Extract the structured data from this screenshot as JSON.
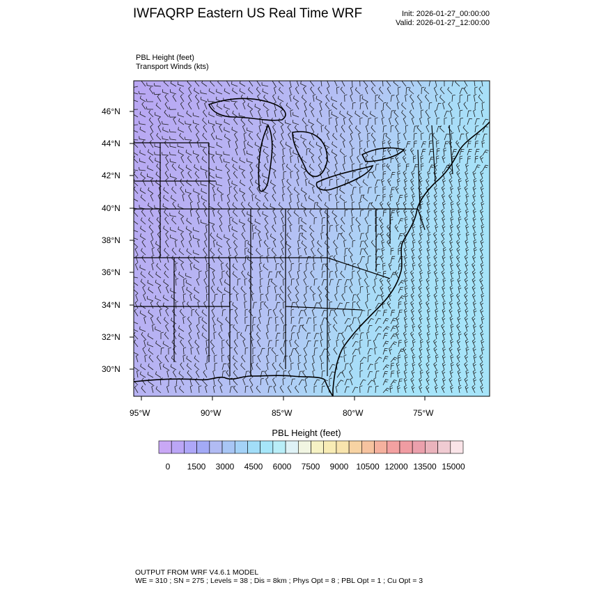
{
  "header": {
    "title": "IWFAQRP Eastern US Real Time WRF",
    "init": "Init: 2026-01-27_00:00:00",
    "valid": "Valid: 2026-01-27_12:00:00"
  },
  "fields": {
    "line1": "PBL Height   (feet)",
    "line2": "Transport Winds   (kts)"
  },
  "map": {
    "lat_labels": [
      "46°N",
      "44°N",
      "42°N",
      "40°N",
      "38°N",
      "36°N",
      "34°N",
      "32°N",
      "30°N"
    ],
    "lon_labels": [
      "95°W",
      "90°W",
      "85°W",
      "80°W",
      "75°W"
    ]
  },
  "colorbar": {
    "title": "PBL Height  (feet)",
    "labels": [
      "0",
      "1500",
      "3000",
      "4500",
      "6000",
      "7500",
      "9000",
      "10500",
      "12000",
      "13500",
      "15000"
    ],
    "colors": [
      "#c9a8f5",
      "#bba6f6",
      "#aea7f8",
      "#a3aaf6",
      "#b1bbf3",
      "#a8c6f5",
      "#a4d2f7",
      "#a2ddf8",
      "#a6e6f9",
      "#b9eef8",
      "#dff2f6",
      "#f1f5e2",
      "#f6f2c4",
      "#f8ecb5",
      "#f8e4ad",
      "#f7d3a3",
      "#f6c39f",
      "#f5b19e",
      "#f3a1a1",
      "#f09ca2",
      "#eba0ac",
      "#eab3bc",
      "#f0cbd2",
      "#fae4e8"
    ]
  },
  "footer": {
    "line1": "OUTPUT FROM WRF V4.6.1 MODEL",
    "line2": "WE = 310 ; SN = 275 ; Levels = 38 ; Dis = 8km ; Phys Opt = 8 ; PBL Opt = 1 ; Cu Opt = 3"
  }
}
